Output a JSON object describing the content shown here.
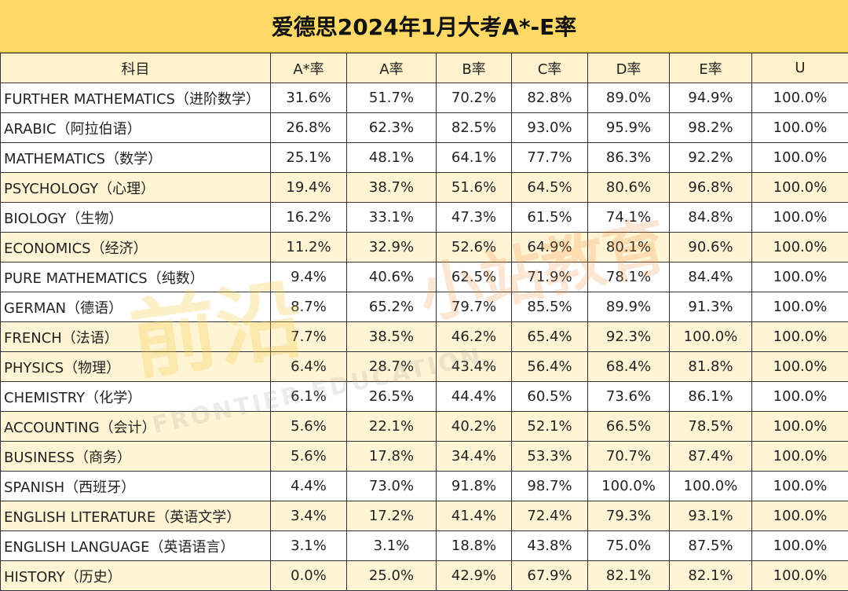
{
  "title": "爱德思2024年1月大考A*-E率",
  "watermark": {
    "logo_text": "前沿",
    "sub_text": "FRONTIER EDUCATION",
    "brand_text": "小站教育"
  },
  "chart_data": {
    "type": "table",
    "title": "爱德思2024年1月大考A*-E率",
    "columns": [
      "科目",
      "A*率",
      "A率",
      "B率",
      "C率",
      "D率",
      "E率",
      "U"
    ],
    "rows": [
      {
        "subject": "FURTHER MATHEMATICS（进阶数学）",
        "values": [
          "31.6%",
          "51.7%",
          "70.2%",
          "82.8%",
          "89.0%",
          "94.9%",
          "100.0%"
        ],
        "shaded": false
      },
      {
        "subject": " ARABIC（阿拉伯语）",
        "values": [
          "26.8%",
          "62.3%",
          "82.5%",
          "93.0%",
          "95.9%",
          "98.2%",
          "100.0%"
        ],
        "shaded": false
      },
      {
        "subject": "MATHEMATICS（数学）",
        "values": [
          "25.1%",
          "48.1%",
          "64.1%",
          "77.7%",
          "86.3%",
          "92.2%",
          "100.0%"
        ],
        "shaded": false
      },
      {
        "subject": "PSYCHOLOGY（心理）",
        "values": [
          "19.4%",
          "38.7%",
          "51.6%",
          "64.5%",
          "80.6%",
          "96.8%",
          "100.0%"
        ],
        "shaded": true
      },
      {
        "subject": "BIOLOGY（生物）",
        "values": [
          "16.2%",
          "33.1%",
          "47.3%",
          "61.5%",
          "74.1%",
          "84.8%",
          "100.0%"
        ],
        "shaded": false
      },
      {
        "subject": "ECONOMICS（经济）",
        "values": [
          "11.2%",
          "32.9%",
          "52.6%",
          "64.9%",
          "80.1%",
          "90.6%",
          "100.0%"
        ],
        "shaded": true
      },
      {
        "subject": "PURE MATHEMATICS（纯数）",
        "values": [
          "9.4%",
          "40.6%",
          "62.5%",
          "71.9%",
          "78.1%",
          "84.4%",
          "100.0%"
        ],
        "shaded": false
      },
      {
        "subject": "GERMAN（德语）",
        "values": [
          "8.7%",
          "65.2%",
          "79.7%",
          "85.5%",
          "89.9%",
          "91.3%",
          "100.0%"
        ],
        "shaded": false
      },
      {
        "subject": "FRENCH（法语）",
        "values": [
          "7.7%",
          "38.5%",
          "46.2%",
          "65.4%",
          "92.3%",
          "100.0%",
          "100.0%"
        ],
        "shaded": true
      },
      {
        "subject": "PHYSICS（物理）",
        "values": [
          "6.4%",
          "28.7%",
          "43.4%",
          "56.4%",
          "68.4%",
          "81.8%",
          "100.0%"
        ],
        "shaded": true
      },
      {
        "subject": "CHEMISTRY（化学）",
        "values": [
          "6.1%",
          "26.5%",
          "44.4%",
          "60.5%",
          "73.6%",
          "86.1%",
          "100.0%"
        ],
        "shaded": false
      },
      {
        "subject": "ACCOUNTING（会计）",
        "values": [
          "5.6%",
          "22.1%",
          "40.2%",
          "52.1%",
          "66.5%",
          "78.5%",
          "100.0%"
        ],
        "shaded": true
      },
      {
        "subject": "BUSINESS（商务）",
        "values": [
          "5.6%",
          "17.8%",
          "34.4%",
          "53.3%",
          "70.7%",
          "87.4%",
          "100.0%"
        ],
        "shaded": true
      },
      {
        "subject": "SPANISH（西班牙）",
        "values": [
          "4.4%",
          "73.0%",
          "91.8%",
          "98.7%",
          "100.0%",
          "100.0%",
          "100.0%"
        ],
        "shaded": false
      },
      {
        "subject": "ENGLISH LITERATURE（英语文学）",
        "values": [
          "3.4%",
          "17.2%",
          "41.4%",
          "72.4%",
          "79.3%",
          "93.1%",
          "100.0%"
        ],
        "shaded": true
      },
      {
        "subject": "ENGLISH LANGUAGE（英语语言）",
        "values": [
          "3.1%",
          "3.1%",
          "18.8%",
          "43.8%",
          "75.0%",
          "87.5%",
          "100.0%"
        ],
        "shaded": false
      },
      {
        "subject": "HISTORY（历史）",
        "values": [
          "0.0%",
          "25.0%",
          "42.9%",
          "67.9%",
          "82.1%",
          "82.1%",
          "100.0%"
        ],
        "shaded": true
      }
    ]
  }
}
